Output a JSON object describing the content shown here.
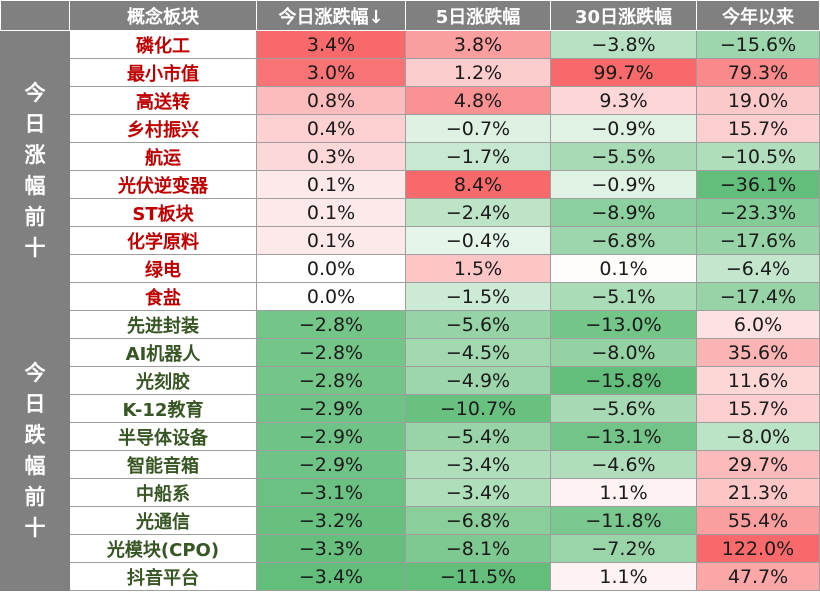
{
  "headers": [
    "",
    "概念板块",
    "今日涨跌幅↓",
    "5日涨跌幅",
    "30日涨跌幅",
    "今年以来"
  ],
  "groups": [
    {
      "label": "今日涨幅前十",
      "kind": "up",
      "rows": [
        {
          "name": "磷化工",
          "today": 3.4,
          "d5": 3.8,
          "d30": -3.8,
          "ytd": -15.6
        },
        {
          "name": "最小市值",
          "today": 3.0,
          "d5": 1.2,
          "d30": 99.7,
          "ytd": 79.3
        },
        {
          "name": "高送转",
          "today": 0.8,
          "d5": 4.8,
          "d30": 9.3,
          "ytd": 19.0
        },
        {
          "name": "乡村振兴",
          "today": 0.4,
          "d5": -0.7,
          "d30": -0.9,
          "ytd": 15.7
        },
        {
          "name": "航运",
          "today": 0.3,
          "d5": -1.7,
          "d30": -5.5,
          "ytd": -10.5
        },
        {
          "name": "光伏逆变器",
          "today": 0.1,
          "d5": 8.4,
          "d30": -0.9,
          "ytd": -36.1
        },
        {
          "name": "ST板块",
          "today": 0.1,
          "d5": -2.4,
          "d30": -8.9,
          "ytd": -23.3
        },
        {
          "name": "化学原料",
          "today": 0.1,
          "d5": -0.4,
          "d30": -6.8,
          "ytd": -17.6
        },
        {
          "name": "绿电",
          "today": 0.0,
          "d5": 1.5,
          "d30": 0.1,
          "ytd": -6.4
        },
        {
          "name": "食盐",
          "today": 0.0,
          "d5": -1.5,
          "d30": -5.1,
          "ytd": -17.4
        }
      ]
    },
    {
      "label": "今日跌幅前十",
      "kind": "down",
      "rows": [
        {
          "name": "先进封装",
          "today": -2.8,
          "d5": -5.6,
          "d30": -13.0,
          "ytd": 6.0
        },
        {
          "name": "AI机器人",
          "today": -2.8,
          "d5": -4.5,
          "d30": -8.0,
          "ytd": 35.6
        },
        {
          "name": "光刻胶",
          "today": -2.8,
          "d5": -4.9,
          "d30": -15.8,
          "ytd": 11.6
        },
        {
          "name": "K-12教育",
          "today": -2.9,
          "d5": -10.7,
          "d30": -5.6,
          "ytd": 15.7
        },
        {
          "name": "半导体设备",
          "today": -2.9,
          "d5": -5.4,
          "d30": -13.1,
          "ytd": -8.0
        },
        {
          "name": "智能音箱",
          "today": -2.9,
          "d5": -3.4,
          "d30": -4.6,
          "ytd": 29.7
        },
        {
          "name": "中船系",
          "today": -3.1,
          "d5": -3.4,
          "d30": 1.1,
          "ytd": 21.3
        },
        {
          "name": "光通信",
          "today": -3.2,
          "d5": -6.8,
          "d30": -11.8,
          "ytd": 55.4
        },
        {
          "name": "光模块(CPO)",
          "today": -3.3,
          "d5": -8.1,
          "d30": -7.2,
          "ytd": 122.0
        },
        {
          "name": "抖音平台",
          "today": -3.4,
          "d5": -11.5,
          "d30": 1.1,
          "ytd": 47.7
        }
      ]
    }
  ],
  "colors": {
    "header_bg": "#808080",
    "positive": "#f8696b",
    "negative": "#63be7b",
    "up_name": "#c00000",
    "down_name": "#375623"
  },
  "chart_data": {
    "type": "table",
    "columns": [
      "概念板块",
      "今日涨跌幅↓",
      "5日涨跌幅",
      "30日涨跌幅",
      "今年以来"
    ],
    "unit": "%",
    "row_groups": [
      "今日涨幅前十",
      "今日跌幅前十"
    ]
  }
}
